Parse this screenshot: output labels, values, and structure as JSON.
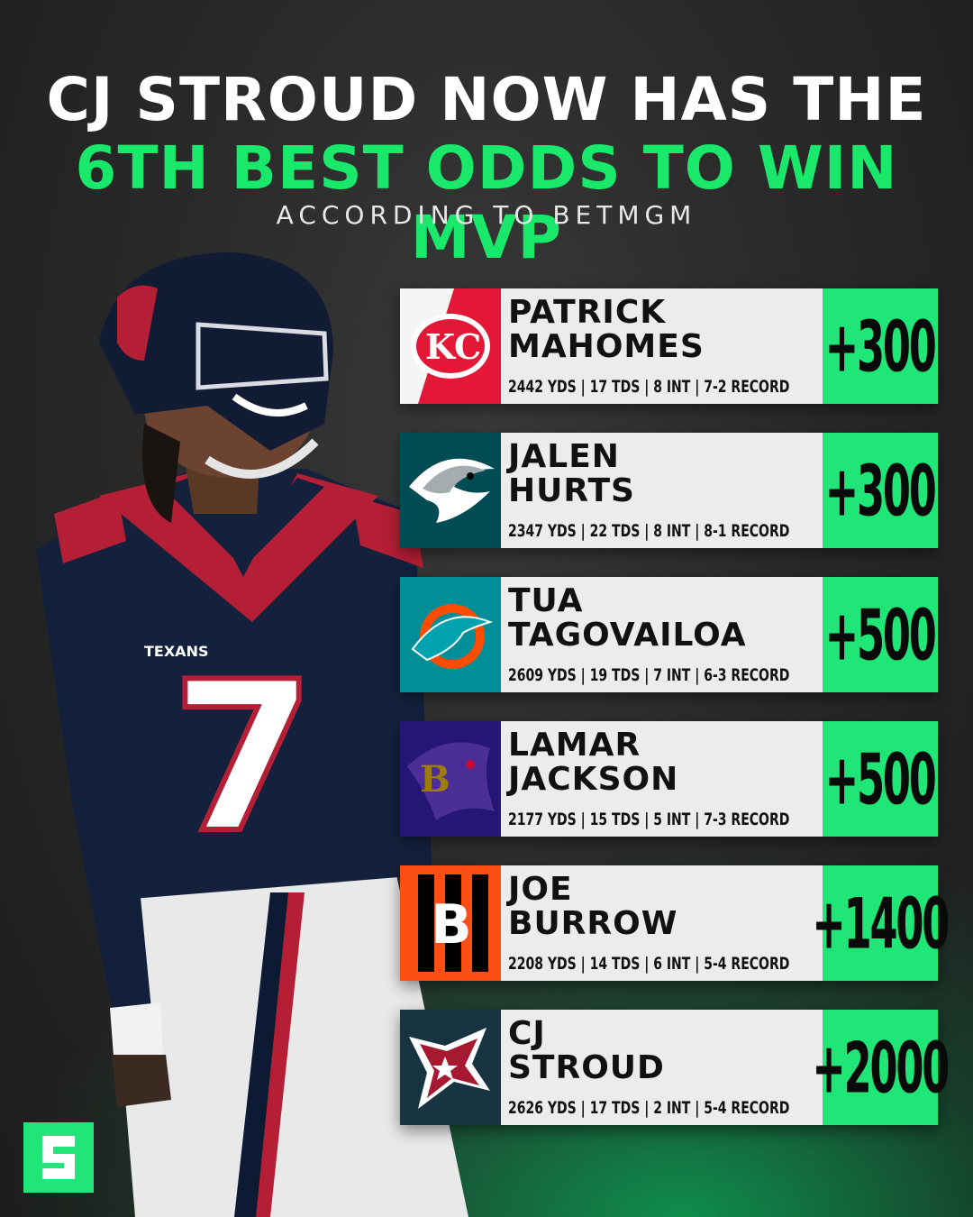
{
  "header": {
    "line1": "CJ STROUD NOW HAS THE",
    "line2": "6TH BEST ODDS TO WIN MVP",
    "subtitle": "ACCORDING TO BETMGM"
  },
  "player_jersey_number": "7",
  "player_jersey_text": "TEXANS",
  "colors": {
    "accent_green": "#1fe676",
    "headline_green": "#19e86a",
    "card_bg": "#ececec",
    "background": "#2a2a2a"
  },
  "players": [
    {
      "name": "PATRICK\nMAHOMES",
      "stats": "2442 YDS | 17 TDS | 8 INT | 7-2 RECORD",
      "odds": "+300",
      "team_logo": "chiefs-logo-icon"
    },
    {
      "name": "JALEN\nHURTS",
      "stats": "2347 YDS | 22 TDS | 8 INT | 8-1 RECORD",
      "odds": "+300",
      "team_logo": "eagles-logo-icon"
    },
    {
      "name": "TUA\nTAGOVAILOA",
      "stats": "2609 YDS | 19 TDS | 7 INT | 6-3 RECORD",
      "odds": "+500",
      "team_logo": "dolphins-logo-icon"
    },
    {
      "name": "LAMAR\nJACKSON",
      "stats": "2177 YDS | 15 TDS | 5 INT | 7-3 RECORD",
      "odds": "+500",
      "team_logo": "ravens-logo-icon"
    },
    {
      "name": "JOE\nBURROW",
      "stats": "2208 YDS | 14 TDS | 6 INT | 5-4 RECORD",
      "odds": "+1400",
      "team_logo": "bengals-logo-icon"
    },
    {
      "name": "CJ\nSTROUD",
      "stats": "2626 YDS | 17 TDS | 2 INT | 5-4 RECORD",
      "odds": "+2000",
      "team_logo": "texans-logo-icon"
    }
  ],
  "brand_logo": "brand-s-logo-icon"
}
